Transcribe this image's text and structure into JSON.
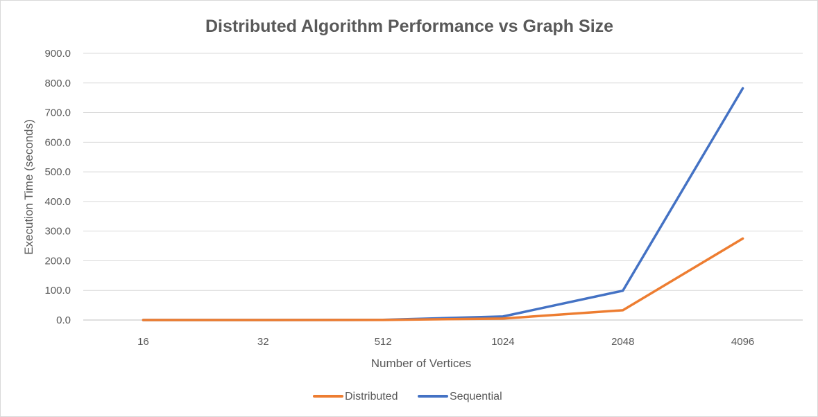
{
  "chart_data": {
    "type": "line",
    "title": "Distributed Algorithm Performance vs Graph Size",
    "xlabel": "Number of Vertices",
    "ylabel": "Execution Time (seconds)",
    "categories": [
      "16",
      "32",
      "512",
      "1024",
      "2048",
      "4096"
    ],
    "y_ticks": [
      "0.0",
      "100.0",
      "200.0",
      "300.0",
      "400.0",
      "500.0",
      "600.0",
      "700.0",
      "800.0",
      "900.0"
    ],
    "ylim": [
      0,
      900
    ],
    "grid": true,
    "legend_position": "bottom",
    "series": [
      {
        "name": "Distributed",
        "color": "#ED7D31",
        "values": [
          0.1,
          0.1,
          0.3,
          5,
          33,
          275
        ]
      },
      {
        "name": "Sequential",
        "color": "#4472C4",
        "values": [
          0.1,
          0.1,
          0.5,
          12,
          99,
          782
        ]
      }
    ]
  }
}
